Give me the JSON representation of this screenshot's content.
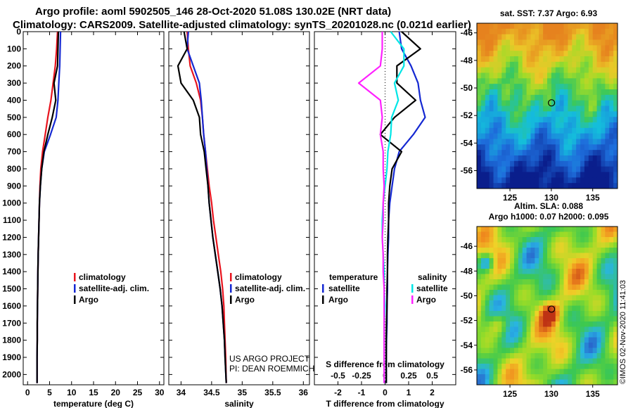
{
  "header": {
    "title_line1": "Argo profile: aoml 5902505_146 28-Oct-2020 51.08S 130.02E (NRT data)",
    "title_line2": "Climatology: CARS2009. Satellite-adjusted climatology: synTS_20201028.nc (0.021d earlier)"
  },
  "credits": {
    "project": "US ARGO PROJECT",
    "pi": "PI: DEAN ROEMMICH",
    "stamp": "©IMOS 02-Nov-2020 11:41:03"
  },
  "colors": {
    "climatology": "#e8141e",
    "satellite": "#1428d2",
    "argo": "#000000",
    "temp_diff": "#00e6e6",
    "sal_diff": "#ff20ff"
  },
  "chart_data": [
    {
      "type": "line",
      "id": "temperature",
      "xlabel": "temperature (deg C)",
      "xlim": [
        -1,
        31
      ],
      "xticks": [
        "0",
        "5",
        "10",
        "15",
        "20",
        "25",
        "30"
      ],
      "xtick_values": [
        0,
        5,
        10,
        15,
        20,
        25,
        30
      ],
      "ylim": [
        0,
        2060
      ],
      "yticks": [
        0,
        100,
        200,
        300,
        400,
        500,
        600,
        700,
        800,
        900,
        1000,
        1100,
        1200,
        1300,
        1400,
        1500,
        1600,
        1700,
        1800,
        1900,
        2000
      ],
      "legend": [
        "climatology",
        "satellite-adj. clim.",
        "Argo"
      ],
      "series": [
        {
          "name": "climatology",
          "color": "#e8141e",
          "x": [
            6.8,
            6.6,
            6.3,
            5.8,
            5.3,
            4.6,
            4.0,
            3.4,
            3.0,
            2.8,
            2.7,
            2.6,
            2.5,
            2.4,
            2.35,
            2.3,
            2.25,
            2.2,
            2.2,
            2.15,
            2.15
          ],
          "depth": [
            0,
            100,
            200,
            300,
            400,
            500,
            600,
            700,
            800,
            900,
            1000,
            1100,
            1200,
            1300,
            1400,
            1500,
            1600,
            1700,
            1800,
            1900,
            2050
          ]
        },
        {
          "name": "satellite",
          "color": "#1428d2",
          "x": [
            7.5,
            7.4,
            7.3,
            7.1,
            6.9,
            6.5,
            5.2,
            3.8,
            3.2,
            2.9,
            2.7,
            2.6,
            2.5,
            2.4,
            2.35,
            2.3,
            2.25,
            2.2,
            2.2,
            2.15,
            2.15
          ],
          "depth": [
            0,
            100,
            200,
            300,
            400,
            500,
            600,
            700,
            800,
            900,
            1000,
            1100,
            1200,
            1300,
            1400,
            1500,
            1600,
            1700,
            1800,
            1900,
            2050
          ]
        },
        {
          "name": "Argo",
          "color": "#000000",
          "x": [
            7.0,
            6.9,
            6.8,
            6.0,
            6.4,
            5.6,
            4.6,
            3.7,
            3.2,
            2.9,
            2.7,
            2.6,
            2.5,
            2.4,
            2.35,
            2.3,
            2.25,
            2.2,
            2.2,
            2.15,
            2.15
          ],
          "depth": [
            0,
            100,
            200,
            300,
            400,
            500,
            600,
            700,
            800,
            900,
            1000,
            1100,
            1200,
            1300,
            1400,
            1500,
            1600,
            1700,
            1800,
            1900,
            2050
          ]
        }
      ]
    },
    {
      "type": "line",
      "id": "salinity",
      "xlabel": "salinity",
      "xlim": [
        33.8,
        36.1
      ],
      "xticks": [
        "34",
        "34.5",
        "35",
        "35.5",
        "36"
      ],
      "xtick_values": [
        34,
        34.5,
        35,
        35.5,
        36
      ],
      "ylim": [
        0,
        2060
      ],
      "legend": [
        "climatology",
        "satellite-adj. clim.",
        "Argo"
      ],
      "series": [
        {
          "name": "climatology",
          "color": "#e8141e",
          "x": [
            34.1,
            34.12,
            34.15,
            34.25,
            34.32,
            34.35,
            34.37,
            34.4,
            34.43,
            34.46,
            34.5,
            34.53,
            34.57,
            34.61,
            34.65,
            34.68,
            34.7,
            34.71,
            34.72,
            34.73,
            34.74
          ],
          "depth": [
            0,
            100,
            200,
            300,
            400,
            500,
            600,
            700,
            800,
            900,
            1000,
            1100,
            1200,
            1300,
            1400,
            1500,
            1600,
            1700,
            1800,
            1900,
            2050
          ]
        },
        {
          "name": "satellite",
          "color": "#1428d2",
          "x": [
            34.12,
            34.1,
            34.2,
            34.3,
            34.33,
            34.35,
            34.37,
            34.4,
            34.42,
            34.44,
            34.46,
            34.49,
            34.52,
            34.56,
            34.6,
            34.64,
            34.67,
            34.69,
            34.71,
            34.72,
            34.74
          ],
          "depth": [
            0,
            100,
            200,
            300,
            400,
            500,
            600,
            700,
            800,
            900,
            1000,
            1100,
            1200,
            1300,
            1400,
            1500,
            1600,
            1700,
            1800,
            1900,
            2050
          ]
        },
        {
          "name": "Argo",
          "color": "#000000",
          "x": [
            34.05,
            34.1,
            33.95,
            34.0,
            34.2,
            34.3,
            34.32,
            34.38,
            34.41,
            34.44,
            34.46,
            34.49,
            34.52,
            34.56,
            34.6,
            34.64,
            34.67,
            34.69,
            34.71,
            34.72,
            34.74
          ],
          "depth": [
            0,
            100,
            200,
            300,
            400,
            500,
            600,
            700,
            800,
            900,
            1000,
            1100,
            1200,
            1300,
            1400,
            1500,
            1600,
            1700,
            1800,
            1900,
            2050
          ]
        }
      ]
    },
    {
      "type": "line",
      "id": "difference",
      "xlabel": "T difference from climatology",
      "xlabel2": "S difference from climatology",
      "xlim": [
        -3,
        3
      ],
      "xticks": [
        "-2",
        "-1",
        "0",
        "1",
        "2"
      ],
      "xtick_values": [
        -2,
        -1,
        0,
        1,
        2
      ],
      "xticks2": [
        "-0.5",
        "-0.25",
        "0",
        "0.25",
        "0.5"
      ],
      "xtick2_values": [
        -0.5,
        -0.25,
        0,
        0.25,
        0.5
      ],
      "legend_temperature": [
        "temperature",
        "satellite",
        "Argo"
      ],
      "legend_salinity": [
        "salinity",
        "satellite",
        "Argo"
      ],
      "series": [
        {
          "name": "T satellite",
          "color": "#1428d2",
          "x": [
            0.6,
            0.7,
            1.1,
            1.4,
            1.5,
            1.7,
            1.2,
            0.6,
            0.4,
            0.3,
            0.2,
            0.15,
            0.15,
            0.12,
            0.1,
            0.1,
            0.08,
            0.08,
            0.06,
            0.05,
            0.05
          ],
          "depth": [
            0,
            100,
            200,
            300,
            400,
            500,
            600,
            700,
            800,
            900,
            1000,
            1100,
            1200,
            1300,
            1400,
            1500,
            1600,
            1700,
            1800,
            1900,
            2050
          ]
        },
        {
          "name": "T Argo",
          "color": "#000000",
          "x": [
            0.7,
            1.5,
            0.5,
            0.5,
            1.3,
            0.4,
            -0.2,
            0.7,
            0.3,
            0.2,
            0.15,
            0.15,
            0.12,
            0.1,
            0.1,
            0.08,
            0.08,
            0.06,
            0.05,
            0.05,
            0.05
          ],
          "depth": [
            0,
            100,
            200,
            300,
            400,
            500,
            600,
            700,
            800,
            900,
            1000,
            1100,
            1200,
            1300,
            1400,
            1500,
            1600,
            1700,
            1800,
            1900,
            2050
          ]
        },
        {
          "name": "S satellite",
          "color": "#00e6e6",
          "x": [
            0.06,
            0.2,
            0.2,
            0.1,
            0.14,
            0.07,
            0.06,
            0.03,
            0.02,
            0.0,
            -0.02,
            -0.03,
            -0.03,
            -0.02,
            -0.01,
            -0.01,
            0.0,
            -0.01,
            -0.01,
            -0.01,
            -0.01
          ],
          "depth": [
            0,
            100,
            200,
            300,
            400,
            500,
            600,
            700,
            800,
            900,
            1000,
            1100,
            1200,
            1300,
            1400,
            1500,
            1600,
            1700,
            1800,
            1900,
            2050
          ]
        },
        {
          "name": "S Argo",
          "color": "#ff20ff",
          "x": [
            -0.03,
            -0.03,
            -0.05,
            -0.28,
            -0.05,
            -0.03,
            -0.05,
            -0.02,
            -0.02,
            -0.01,
            -0.02,
            -0.02,
            -0.03,
            -0.02,
            -0.02,
            -0.01,
            -0.01,
            -0.01,
            -0.01,
            -0.01,
            -0.01
          ],
          "depth": [
            0,
            100,
            200,
            300,
            400,
            500,
            600,
            700,
            800,
            900,
            1000,
            1100,
            1200,
            1300,
            1400,
            1500,
            1600,
            1700,
            1800,
            1900,
            2050
          ]
        }
      ]
    },
    {
      "type": "heatmap",
      "id": "sst_map",
      "title": "sat. SST: 7.37 Argo: 6.93",
      "xticks": [
        "125",
        "130",
        "135"
      ],
      "xtick_values": [
        125,
        130,
        135
      ],
      "yticks": [
        "-46",
        "-48",
        "-50",
        "-52",
        "-54",
        "-56"
      ],
      "ytick_values": [
        -46,
        -48,
        -50,
        -52,
        -54,
        -56
      ],
      "xlim": [
        121,
        138
      ],
      "ylim": [
        -57.3,
        -45.3
      ],
      "marker": {
        "lon": 130.02,
        "lat": -51.08
      }
    },
    {
      "type": "heatmap",
      "id": "sla_map",
      "title": "Altim. SLA: 0.088",
      "subtitle": "Argo h1000: 0.07 h2000: 0.095",
      "xticks": [
        "125",
        "130",
        "135"
      ],
      "xtick_values": [
        125,
        130,
        135
      ],
      "yticks": [
        "-46",
        "-48",
        "-50",
        "-52",
        "-54",
        "-56"
      ],
      "ytick_values": [
        -46,
        -48,
        -50,
        -52,
        -54,
        -56
      ],
      "xlim": [
        121,
        138
      ],
      "ylim": [
        -57.2,
        -44.4
      ],
      "marker": {
        "lon": 130.02,
        "lat": -51.08
      }
    }
  ]
}
